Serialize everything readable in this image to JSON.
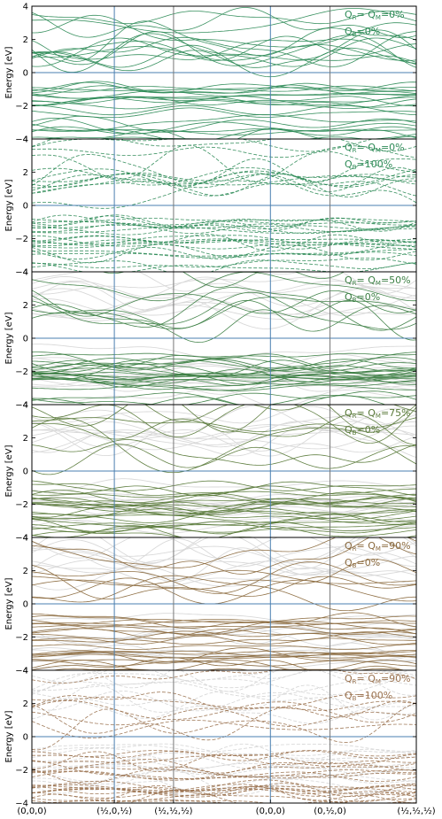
{
  "chart_data": {
    "type": "line",
    "description_kind": "band-structure",
    "ylim": [
      -4,
      4
    ],
    "yticks": [
      -4,
      -2,
      0,
      2,
      4
    ],
    "ylabel": "Energy [eV]",
    "kpoints": [
      {
        "label": "(0,0,0)",
        "pos": 0.0
      },
      {
        "label": "(½,0,½)",
        "pos": 0.2145
      },
      {
        "label": "(½,½,½)",
        "pos": 0.3685
      },
      {
        "label": "(0,0,0)",
        "pos": 0.6205
      },
      {
        "label": "(0,½,0)",
        "pos": 0.7755
      },
      {
        "label": "(½,½,½)",
        "pos": 1.0
      }
    ],
    "fermi_level": 0,
    "panels": [
      {
        "legend_line1": "Q",
        "legend_line1_parts": [
          "Q",
          "R",
          "= Q",
          "M",
          "=0%"
        ],
        "legend_line2_parts": [
          "Q",
          "B",
          "=0%"
        ],
        "color": "#2e8b57",
        "linestyle": "solid",
        "ghost": false,
        "seed": 11
      },
      {
        "legend_line1_parts": [
          "Q",
          "R",
          "= Q",
          "M",
          "=0%"
        ],
        "legend_line2_parts": [
          "Q",
          "B",
          "=100%"
        ],
        "color": "#2e8b57",
        "linestyle": "dashed",
        "ghost": false,
        "seed": 23
      },
      {
        "legend_line1_parts": [
          "Q",
          "R",
          "= Q",
          "M",
          "=50%"
        ],
        "legend_line2_parts": [
          "Q",
          "B",
          "=0%"
        ],
        "color": "#3d8045",
        "linestyle": "solid",
        "ghost": true,
        "seed": 37
      },
      {
        "legend_line1_parts": [
          "Q",
          "R",
          "= Q",
          "M",
          "=75%"
        ],
        "legend_line2_parts": [
          "Q",
          "B",
          "=0%"
        ],
        "color": "#5a7a3a",
        "linestyle": "solid",
        "ghost": true,
        "seed": 41
      },
      {
        "legend_line1_parts": [
          "Q",
          "R",
          "= Q",
          "M",
          "=90%"
        ],
        "legend_line2_parts": [
          "Q",
          "B",
          "=0%"
        ],
        "color": "#8b6a3e",
        "linestyle": "solid",
        "ghost": true,
        "seed": 53
      },
      {
        "legend_line1_parts": [
          "Q",
          "R",
          "= Q",
          "M",
          "=90%"
        ],
        "legend_line2_parts": [
          "Q",
          "B",
          "=100%"
        ],
        "color": "#9b7350",
        "linestyle": "dashed",
        "ghost": true,
        "seed": 67
      }
    ],
    "colors": {
      "kpoint_line": "#4a7fb0",
      "grey_line": "#777777",
      "ghost": "#d9d9d9",
      "frame": "#000000"
    }
  }
}
